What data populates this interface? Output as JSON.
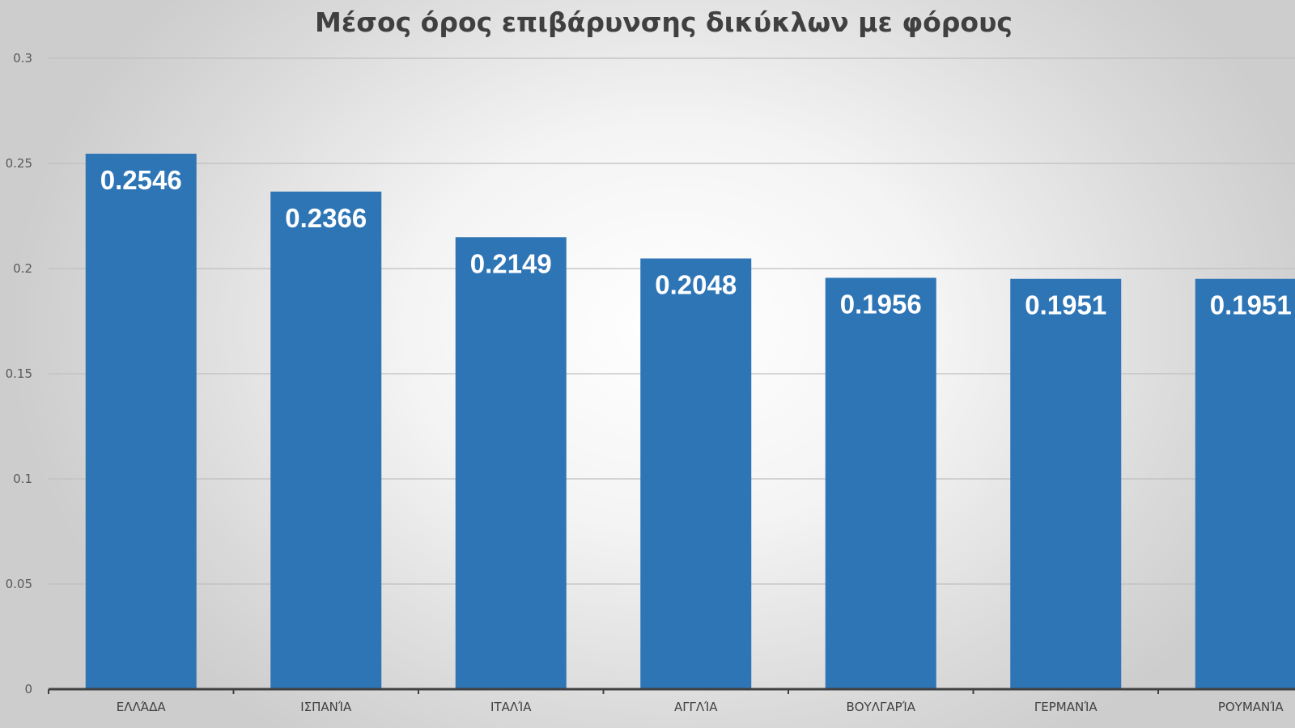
{
  "chart_data": {
    "type": "bar",
    "title": "Μέσος όρος επιβάρυνσης δικύκλων με φόρους",
    "categories": [
      "ΕΛΛΆΔΑ",
      "ΙΣΠΑΝΊΑ",
      "ΙΤΑΛΊΑ",
      "ΑΓΓΛΊΑ",
      "ΒΟΥΛΓΑΡΊΑ",
      "ΓΕΡΜΑΝΊΑ",
      "ΡΟΥΜΑΝΊΑ"
    ],
    "values": [
      0.2546,
      0.2366,
      0.2149,
      0.2048,
      0.1956,
      0.1951,
      0.1951
    ],
    "data_labels": [
      "0.2546",
      "0.2366",
      "0.2149",
      "0.2048",
      "0.1956",
      "0.1951",
      "0.1951"
    ],
    "y_ticks": [
      "0",
      "0.05",
      "0.1",
      "0.15",
      "0.2",
      "0.25",
      "0.3"
    ],
    "ylim": [
      0,
      0.3
    ],
    "grid": true,
    "legend": "none",
    "colors": {
      "bar": "#2e75b6",
      "label": "#ffffff",
      "grid": "#bfbfbf",
      "axis": "#404040",
      "title": "#404040"
    }
  }
}
